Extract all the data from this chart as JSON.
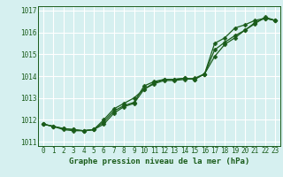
{
  "title": "Graphe pression niveau de la mer (hPa)",
  "bg_color": "#d6f0f0",
  "grid_color": "#ffffff",
  "line_color": "#1a5c1a",
  "marker_color": "#1a5c1a",
  "x_labels": [
    "0",
    "1",
    "2",
    "3",
    "4",
    "5",
    "6",
    "7",
    "8",
    "9",
    "10",
    "11",
    "12",
    "13",
    "14",
    "15",
    "16",
    "17",
    "18",
    "19",
    "20",
    "21",
    "22",
    "23"
  ],
  "ylim": [
    1010.8,
    1017.2
  ],
  "yticks": [
    1011,
    1012,
    1013,
    1014,
    1015,
    1016,
    1017
  ],
  "xlim": [
    -0.5,
    23.5
  ],
  "line1": [
    1011.8,
    1011.7,
    1011.6,
    1011.55,
    1011.5,
    1011.55,
    1011.9,
    1012.4,
    1012.65,
    1012.8,
    1013.55,
    1013.75,
    1013.85,
    1013.85,
    1013.9,
    1013.85,
    1014.1,
    1015.5,
    1015.75,
    1016.2,
    1016.35,
    1016.55,
    1016.65,
    1016.55
  ],
  "line2": [
    1011.8,
    1011.7,
    1011.55,
    1011.5,
    1011.5,
    1011.55,
    1012.0,
    1012.5,
    1012.75,
    1013.0,
    1013.4,
    1013.7,
    1013.85,
    1013.85,
    1013.9,
    1013.85,
    1014.1,
    1014.9,
    1015.45,
    1015.75,
    1016.1,
    1016.45,
    1016.65,
    1016.55
  ],
  "line3": [
    1011.8,
    1011.7,
    1011.6,
    1011.55,
    1011.5,
    1011.55,
    1011.8,
    1012.3,
    1012.6,
    1012.75,
    1013.4,
    1013.65,
    1013.8,
    1013.8,
    1013.85,
    1013.9,
    1014.1,
    1015.2,
    1015.55,
    1015.85,
    1016.1,
    1016.4,
    1016.7,
    1016.55
  ],
  "title_fontsize": 6.5,
  "tick_fontsize": 5.5,
  "linewidth": 0.9,
  "markersize": 2.5
}
